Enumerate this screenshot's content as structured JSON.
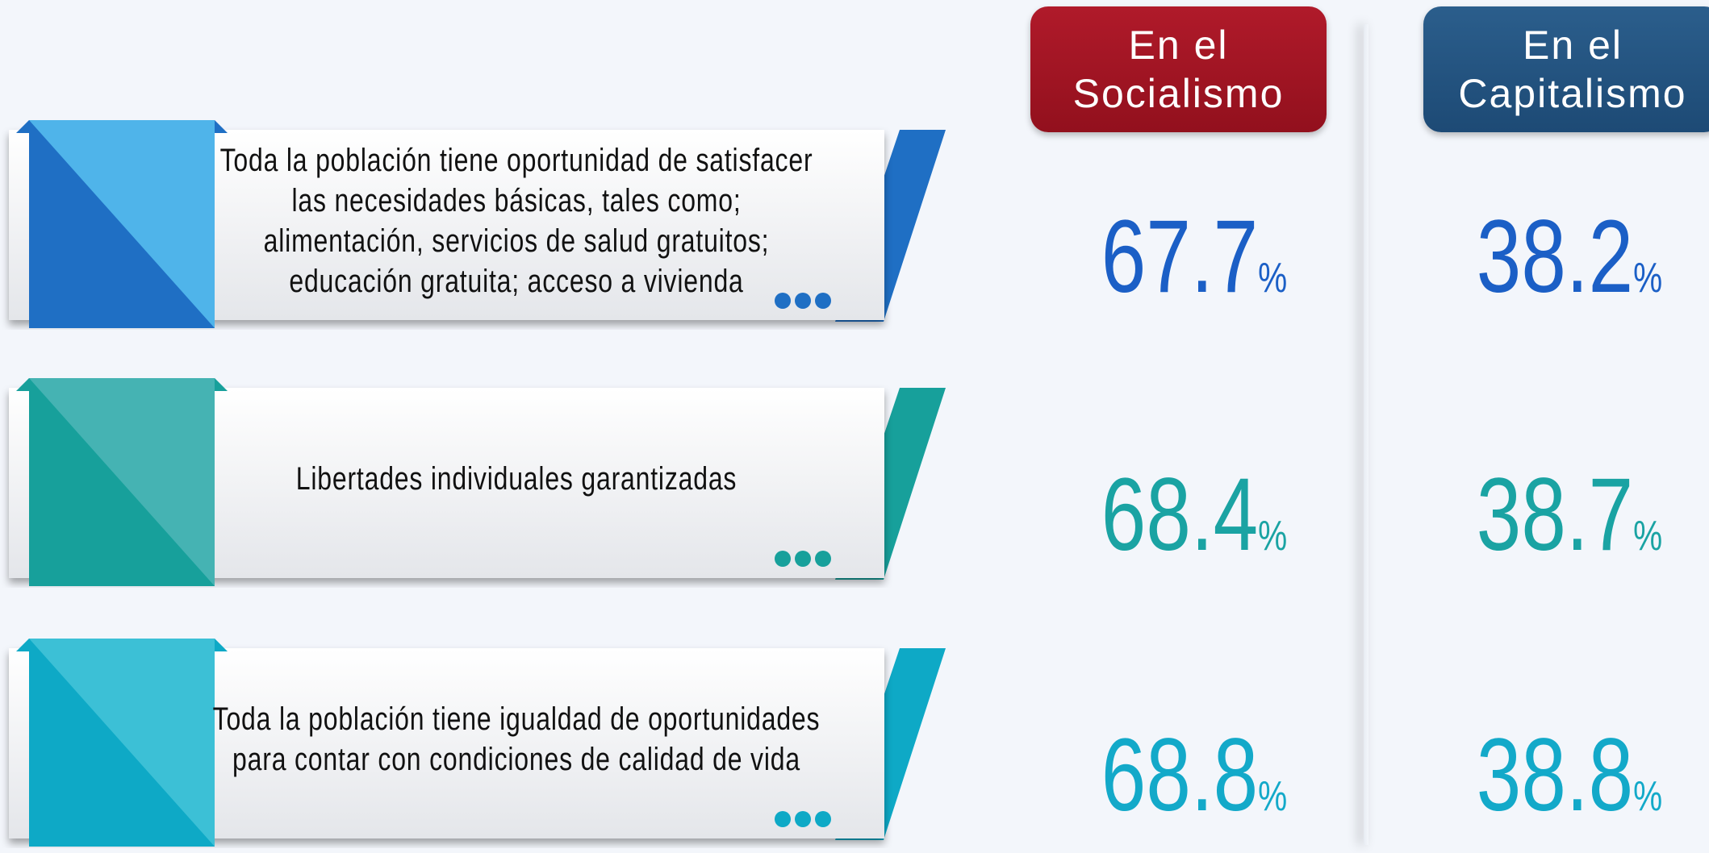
{
  "header": {
    "columns": [
      "En el\nSocialismo",
      "En el\nCapitalismo"
    ]
  },
  "unit": "%",
  "rows": [
    {
      "text": "Toda la población tiene oportunidad de satisfacer las necesidades básicas, tales como; alimentación, servicios de salud gratuitos; educación gratuita; acceso a vivienda",
      "values": [
        67.7,
        38.2
      ],
      "color": "#1f6fc4",
      "light": "#4fb4ea",
      "number_color": "#1b5fc6"
    },
    {
      "text": "Libertades individuales garantizadas",
      "values": [
        68.4,
        38.7
      ],
      "color": "#17a09b",
      "light": "#45b3b3",
      "number_color": "#1aa3a3"
    },
    {
      "text": "Toda la población tiene igualdad de oportunidades para contar con condiciones de calidad de vida",
      "values": [
        68.8,
        38.8
      ],
      "color": "#0ea9c6",
      "light": "#3cc0d6",
      "number_color": "#13a9c9"
    }
  ]
}
